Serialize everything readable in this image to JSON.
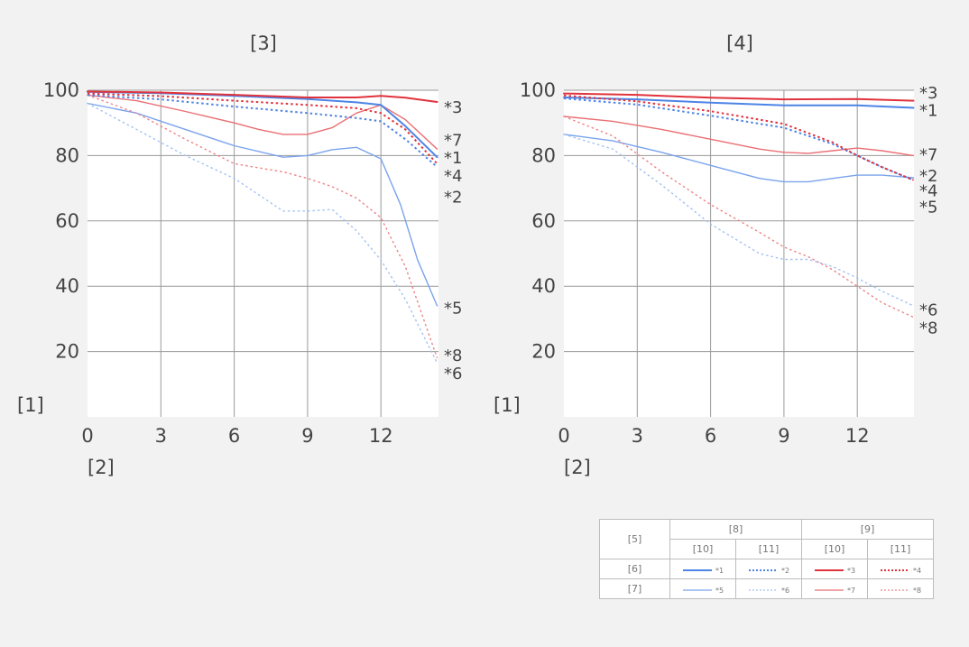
{
  "colors": {
    "blue": "#4d84e6",
    "blue_light": "#a3c1f2",
    "red": "#e0333d",
    "red_light": "#f2999c",
    "grid": "#9a9a9a",
    "plot_bg": "#ffffff",
    "page_bg": "#f2f2f2"
  },
  "chart_data": [
    {
      "type": "line",
      "title": "[3]",
      "ylabel": "[1]",
      "xlabel": "[2]",
      "xlim": [
        0,
        14.3
      ],
      "ylim": [
        0,
        100
      ],
      "xticks": [
        0,
        3,
        6,
        9,
        12
      ],
      "yticks": [
        20,
        40,
        60,
        80,
        100
      ],
      "grid": true,
      "series": [
        {
          "name": "*1",
          "color": "#4d84e6",
          "dash": false,
          "width": 2,
          "x": [
            0,
            3,
            6,
            9,
            11,
            12,
            13,
            14.3
          ],
          "y": [
            99.5,
            99.1,
            98.3,
            97.3,
            96.3,
            95.5,
            89,
            79.5
          ]
        },
        {
          "name": "*2",
          "color": "#4d84e6",
          "dash": true,
          "width": 2,
          "x": [
            0,
            3,
            6,
            9,
            11,
            12,
            13,
            14.3
          ],
          "y": [
            98.5,
            97.2,
            95,
            93,
            91.5,
            90.5,
            85,
            76.5
          ]
        },
        {
          "name": "*3",
          "color": "#e0333d",
          "dash": false,
          "width": 2,
          "x": [
            0,
            3,
            6,
            9,
            11,
            12,
            13,
            14.3
          ],
          "y": [
            99.6,
            99.3,
            98.6,
            97.8,
            97.8,
            98.3,
            97.7,
            96.4
          ]
        },
        {
          "name": "*4",
          "color": "#e0333d",
          "dash": true,
          "width": 2,
          "x": [
            0,
            3,
            6,
            9,
            11,
            12,
            13,
            14.3
          ],
          "y": [
            99,
            98.2,
            96.8,
            95.5,
            94.5,
            93,
            88,
            77.5
          ]
        },
        {
          "name": "*5",
          "color": "#7aa3ed",
          "dash": false,
          "width": 1.4,
          "x": [
            0,
            2,
            4,
            6,
            8,
            9,
            10,
            11,
            12,
            12.8,
            13.5,
            14.3
          ],
          "y": [
            96,
            93,
            88,
            83,
            79.5,
            80,
            81.8,
            82.5,
            79,
            65,
            48,
            34
          ]
        },
        {
          "name": "*6",
          "color": "#a3c1f2",
          "dash": true,
          "width": 1.4,
          "x": [
            0,
            2,
            4,
            6,
            8,
            9,
            10,
            11,
            12,
            13,
            14.3
          ],
          "y": [
            96,
            88,
            80,
            73,
            63,
            63,
            63.5,
            57,
            48,
            36,
            16.5
          ]
        },
        {
          "name": "*7",
          "color": "#ea6f75",
          "dash": false,
          "width": 1.4,
          "x": [
            0,
            2,
            4,
            6,
            7,
            8,
            9,
            10,
            11,
            12,
            13,
            14.3
          ],
          "y": [
            98.5,
            96.8,
            93.5,
            90,
            88,
            86.5,
            86.5,
            88.5,
            93,
            95.5,
            91,
            82
          ]
        },
        {
          "name": "*8",
          "color": "#ee8387",
          "dash": true,
          "width": 1.4,
          "x": [
            0,
            2,
            4,
            6,
            8,
            9,
            10,
            11,
            12,
            13,
            14.3
          ],
          "y": [
            98.5,
            93,
            85,
            77.5,
            75,
            73,
            70.5,
            67,
            61,
            46,
            18
          ]
        }
      ],
      "annotations": [
        {
          "text": "*3",
          "y": 95
        },
        {
          "text": "*7",
          "y": 85
        },
        {
          "text": "*1",
          "y": 79.5
        },
        {
          "text": "*4",
          "y": 74
        },
        {
          "text": "*2",
          "y": 67.5
        },
        {
          "text": "*5",
          "y": 33.5
        },
        {
          "text": "*8",
          "y": 19
        },
        {
          "text": "*6",
          "y": 13.5
        }
      ]
    },
    {
      "type": "line",
      "title": "[4]",
      "ylabel": "[1]",
      "xlabel": "[2]",
      "xlim": [
        0,
        14.3
      ],
      "ylim": [
        0,
        100
      ],
      "xticks": [
        0,
        3,
        6,
        9,
        12
      ],
      "yticks": [
        20,
        40,
        60,
        80,
        100
      ],
      "grid": true,
      "series": [
        {
          "name": "*1",
          "color": "#4d84e6",
          "dash": false,
          "width": 2,
          "x": [
            0,
            3,
            6,
            9,
            12,
            14.3
          ],
          "y": [
            97.8,
            97.2,
            96.2,
            95.4,
            95.4,
            94.6
          ]
        },
        {
          "name": "*2",
          "color": "#4d84e6",
          "dash": true,
          "width": 2,
          "x": [
            0,
            3,
            6,
            9,
            11,
            12,
            13,
            14.3
          ],
          "y": [
            97.5,
            95.6,
            92.2,
            88.5,
            83.5,
            80,
            76.5,
            72.5
          ]
        },
        {
          "name": "*3",
          "color": "#e0333d",
          "dash": false,
          "width": 2,
          "x": [
            0,
            3,
            6,
            9,
            12,
            14.3
          ],
          "y": [
            99,
            98.6,
            97.7,
            97.2,
            97.3,
            96.8
          ]
        },
        {
          "name": "*4",
          "color": "#e0333d",
          "dash": true,
          "width": 2,
          "x": [
            0,
            3,
            6,
            9,
            11,
            12,
            13,
            14.3
          ],
          "y": [
            98.4,
            96.6,
            93.6,
            89.7,
            84,
            80,
            76.5,
            72.5
          ]
        },
        {
          "name": "*5",
          "color": "#7aa3ed",
          "dash": false,
          "width": 1.4,
          "x": [
            0,
            2,
            4,
            6,
            8,
            9,
            10,
            11,
            12,
            13,
            14.3
          ],
          "y": [
            86.5,
            84.5,
            81,
            77,
            73,
            72,
            72,
            73,
            74,
            74,
            73.2
          ]
        },
        {
          "name": "*6",
          "color": "#a3c1f2",
          "dash": true,
          "width": 1.4,
          "x": [
            0,
            2,
            4,
            6,
            8,
            9,
            10,
            11,
            12,
            13,
            14.3
          ],
          "y": [
            86.5,
            82,
            71,
            59,
            50,
            48.2,
            48.2,
            46,
            42.5,
            38.5,
            34
          ]
        },
        {
          "name": "*7",
          "color": "#ea6f75",
          "dash": false,
          "width": 1.4,
          "x": [
            0,
            2,
            4,
            6,
            8,
            9,
            10,
            11,
            12,
            13,
            14.3
          ],
          "y": [
            92,
            90.5,
            88,
            85,
            82,
            81,
            80.7,
            81.5,
            82.3,
            81.5,
            80
          ]
        },
        {
          "name": "*8",
          "color": "#ee8387",
          "dash": true,
          "width": 1.4,
          "x": [
            0,
            2,
            4,
            6,
            8,
            9,
            10,
            11,
            12,
            13,
            14.3
          ],
          "y": [
            92,
            86,
            75,
            65,
            56.5,
            52,
            49,
            45,
            40,
            35,
            30.5
          ]
        }
      ],
      "annotations": [
        {
          "text": "*3",
          "y": 99.5
        },
        {
          "text": "*1",
          "y": 94
        },
        {
          "text": "*7",
          "y": 80.5
        },
        {
          "text": "*2",
          "y": 74
        },
        {
          "text": "*4",
          "y": 69.5
        },
        {
          "text": "*5",
          "y": 64.5
        },
        {
          "text": "*6",
          "y": 33
        },
        {
          "text": "*8",
          "y": 27.5
        }
      ]
    }
  ],
  "legend": {
    "corner": "[5]",
    "group1": "[8]",
    "group2": "[9]",
    "sub": [
      "[10]",
      "[11]",
      "[10]",
      "[11]"
    ],
    "rows": [
      {
        "label": "[6]",
        "items": [
          "*1",
          "*2",
          "*3",
          "*4"
        ]
      },
      {
        "label": "[7]",
        "items": [
          "*5",
          "*6",
          "*7",
          "*8"
        ]
      }
    ]
  }
}
